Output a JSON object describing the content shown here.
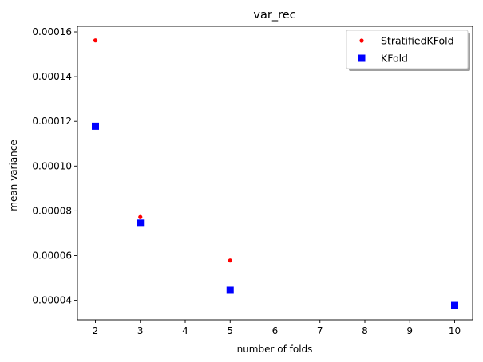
{
  "chart_data": {
    "type": "scatter",
    "title": "var_rec",
    "xlabel": "number of folds",
    "ylabel": "mean variance",
    "xlim": [
      1.6,
      10.4
    ],
    "ylim": [
      3.13e-05,
      0.0001625
    ],
    "xticks": [
      2,
      3,
      4,
      5,
      6,
      7,
      8,
      9,
      10
    ],
    "xtick_labels": [
      "2",
      "3",
      "4",
      "5",
      "6",
      "7",
      "8",
      "9",
      "10"
    ],
    "yticks": [
      4e-05,
      6e-05,
      8e-05,
      0.0001,
      0.00012,
      0.00014,
      0.00016
    ],
    "ytick_labels": [
      "0.00004",
      "0.00006",
      "0.00008",
      "0.00010",
      "0.00012",
      "0.00014",
      "0.00016"
    ],
    "grid": false,
    "legend_position": "top-right",
    "series": [
      {
        "name": "StratifiedKFold",
        "marker": "circle-small",
        "color": "#ff0000",
        "x": [
          2,
          3,
          5
        ],
        "y": [
          0.0001562,
          7.72e-05,
          5.78e-05
        ]
      },
      {
        "name": "KFold",
        "marker": "square",
        "color": "#0000ff",
        "x": [
          2,
          3,
          5,
          10
        ],
        "y": [
          0.0001178,
          7.45e-05,
          4.45e-05,
          3.77e-05
        ]
      }
    ]
  }
}
